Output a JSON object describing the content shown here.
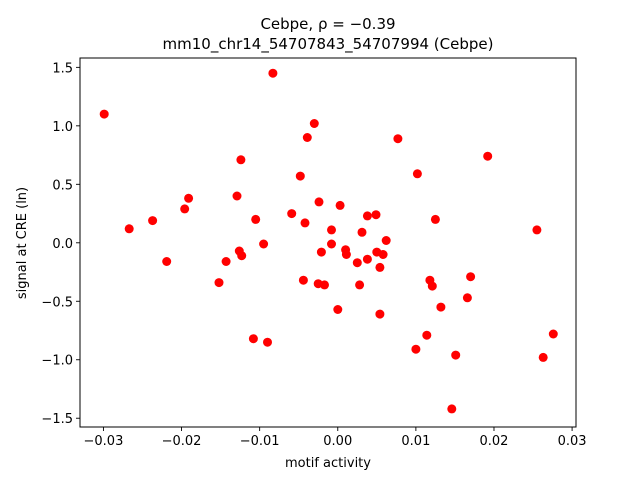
{
  "chart_data": {
    "type": "scatter",
    "title_line1": "Cebpe, ρ = −0.39",
    "title_line2": "mm10_chr14_54707843_54707994 (Cebpe)",
    "xlabel": "motif activity",
    "ylabel": "signal at CRE (ln)",
    "xlim": [
      -0.033,
      0.0305
    ],
    "ylim": [
      -1.575,
      1.58
    ],
    "xticks": [
      -0.03,
      -0.02,
      -0.01,
      0.0,
      0.01,
      0.02,
      0.03
    ],
    "xtick_labels": [
      "−0.03",
      "−0.02",
      "−0.01",
      "0.00",
      "0.01",
      "0.02",
      "0.03"
    ],
    "yticks": [
      -1.5,
      -1.0,
      -0.5,
      0.0,
      0.5,
      1.0,
      1.5
    ],
    "ytick_labels": [
      "−1.5",
      "−1.0",
      "−0.5",
      "0.0",
      "0.5",
      "1.0",
      "1.5"
    ],
    "grid": false,
    "marker_color": "#ff0000",
    "points": [
      {
        "x": -0.0299,
        "y": 1.1
      },
      {
        "x": -0.0267,
        "y": 0.12
      },
      {
        "x": -0.0237,
        "y": 0.19
      },
      {
        "x": -0.0219,
        "y": -0.16
      },
      {
        "x": -0.0196,
        "y": 0.29
      },
      {
        "x": -0.0191,
        "y": 0.38
      },
      {
        "x": -0.0152,
        "y": -0.34
      },
      {
        "x": -0.0143,
        "y": -0.16
      },
      {
        "x": -0.0129,
        "y": 0.4
      },
      {
        "x": -0.0126,
        "y": -0.07
      },
      {
        "x": -0.0124,
        "y": 0.71
      },
      {
        "x": -0.0123,
        "y": -0.11
      },
      {
        "x": -0.0108,
        "y": -0.82
      },
      {
        "x": -0.0105,
        "y": 0.2
      },
      {
        "x": -0.0095,
        "y": -0.01
      },
      {
        "x": -0.009,
        "y": -0.85
      },
      {
        "x": -0.0083,
        "y": 1.45
      },
      {
        "x": -0.0059,
        "y": 0.25
      },
      {
        "x": -0.0048,
        "y": 0.57
      },
      {
        "x": -0.0044,
        "y": -0.32
      },
      {
        "x": -0.0042,
        "y": 0.17
      },
      {
        "x": -0.0039,
        "y": 0.9
      },
      {
        "x": -0.003,
        "y": 1.02
      },
      {
        "x": -0.0025,
        "y": -0.35
      },
      {
        "x": -0.0024,
        "y": 0.35
      },
      {
        "x": -0.0021,
        "y": -0.08
      },
      {
        "x": -0.0017,
        "y": -0.36
      },
      {
        "x": -0.0008,
        "y": 0.11
      },
      {
        "x": -0.0008,
        "y": -0.01
      },
      {
        "x": 0.0,
        "y": -0.57
      },
      {
        "x": 0.0003,
        "y": 0.32
      },
      {
        "x": 0.001,
        "y": -0.06
      },
      {
        "x": 0.0011,
        "y": -0.1
      },
      {
        "x": 0.0025,
        "y": -0.17
      },
      {
        "x": 0.0028,
        "y": -0.36
      },
      {
        "x": 0.0031,
        "y": 0.09
      },
      {
        "x": 0.0038,
        "y": -0.14
      },
      {
        "x": 0.0038,
        "y": 0.23
      },
      {
        "x": 0.0049,
        "y": 0.24
      },
      {
        "x": 0.005,
        "y": -0.08
      },
      {
        "x": 0.0054,
        "y": -0.21
      },
      {
        "x": 0.0054,
        "y": -0.61
      },
      {
        "x": 0.0058,
        "y": -0.1
      },
      {
        "x": 0.0062,
        "y": 0.02
      },
      {
        "x": 0.0077,
        "y": 0.89
      },
      {
        "x": 0.01,
        "y": -0.91
      },
      {
        "x": 0.0102,
        "y": 0.59
      },
      {
        "x": 0.0114,
        "y": -0.79
      },
      {
        "x": 0.0118,
        "y": -0.32
      },
      {
        "x": 0.0121,
        "y": -0.37
      },
      {
        "x": 0.0125,
        "y": 0.2
      },
      {
        "x": 0.0132,
        "y": -0.55
      },
      {
        "x": 0.0146,
        "y": -1.42
      },
      {
        "x": 0.0151,
        "y": -0.96
      },
      {
        "x": 0.0166,
        "y": -0.47
      },
      {
        "x": 0.017,
        "y": -0.29
      },
      {
        "x": 0.0192,
        "y": 0.74
      },
      {
        "x": 0.0255,
        "y": 0.11
      },
      {
        "x": 0.0263,
        "y": -0.98
      },
      {
        "x": 0.0276,
        "y": -0.78
      }
    ]
  }
}
